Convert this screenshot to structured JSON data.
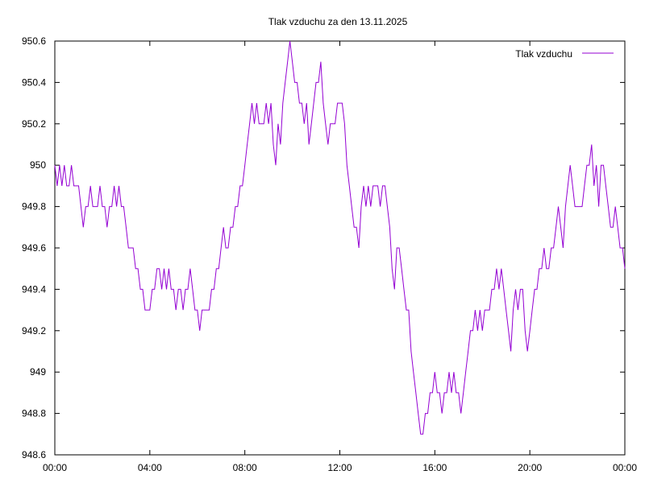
{
  "chart_data": {
    "type": "line",
    "title": "Tlak vzduchu za den 13.11.2025",
    "xlabel": "",
    "ylabel": "",
    "x_unit": "hours",
    "xlim": [
      0,
      24
    ],
    "ylim": [
      948.6,
      950.6
    ],
    "x_ticks": [
      {
        "value": 0,
        "label": "00:00"
      },
      {
        "value": 4,
        "label": "04:00"
      },
      {
        "value": 8,
        "label": "08:00"
      },
      {
        "value": 12,
        "label": "12:00"
      },
      {
        "value": 16,
        "label": "16:00"
      },
      {
        "value": 20,
        "label": "20:00"
      },
      {
        "value": 24,
        "label": "00:00"
      }
    ],
    "y_ticks": [
      {
        "value": 948.6,
        "label": "948.6"
      },
      {
        "value": 948.8,
        "label": "948.8"
      },
      {
        "value": 949.0,
        "label": "949"
      },
      {
        "value": 949.2,
        "label": "949.2"
      },
      {
        "value": 949.4,
        "label": "949.4"
      },
      {
        "value": 949.6,
        "label": "949.6"
      },
      {
        "value": 949.8,
        "label": "949.8"
      },
      {
        "value": 950.0,
        "label": "950"
      },
      {
        "value": 950.2,
        "label": "950.2"
      },
      {
        "value": 950.4,
        "label": "950.4"
      },
      {
        "value": 950.6,
        "label": "950.6"
      }
    ],
    "grid": false,
    "legend_position": "top-right",
    "series": [
      {
        "name": "Tlak vzduchu",
        "color": "#9400d3",
        "x": [
          0.0,
          0.1,
          0.2,
          0.3,
          0.4,
          0.5,
          0.6,
          0.7,
          0.8,
          0.9,
          1.0,
          1.1,
          1.2,
          1.3,
          1.4,
          1.5,
          1.6,
          1.7,
          1.8,
          1.9,
          2.0,
          2.1,
          2.2,
          2.3,
          2.4,
          2.5,
          2.6,
          2.7,
          2.8,
          2.9,
          3.0,
          3.1,
          3.2,
          3.3,
          3.4,
          3.5,
          3.6,
          3.7,
          3.8,
          3.9,
          4.0,
          4.1,
          4.2,
          4.3,
          4.4,
          4.5,
          4.6,
          4.7,
          4.8,
          4.9,
          5.0,
          5.1,
          5.2,
          5.3,
          5.4,
          5.5,
          5.6,
          5.7,
          5.8,
          5.9,
          6.0,
          6.1,
          6.2,
          6.3,
          6.4,
          6.5,
          6.6,
          6.7,
          6.8,
          6.9,
          7.0,
          7.1,
          7.2,
          7.3,
          7.4,
          7.5,
          7.6,
          7.7,
          7.8,
          7.9,
          8.0,
          8.1,
          8.2,
          8.3,
          8.4,
          8.5,
          8.6,
          8.7,
          8.8,
          8.9,
          9.0,
          9.1,
          9.2,
          9.3,
          9.4,
          9.5,
          9.6,
          9.7,
          9.8,
          9.9,
          10.0,
          10.1,
          10.2,
          10.3,
          10.4,
          10.5,
          10.6,
          10.7,
          10.8,
          10.9,
          11.0,
          11.1,
          11.2,
          11.3,
          11.4,
          11.5,
          11.6,
          11.7,
          11.8,
          11.9,
          12.0,
          12.1,
          12.2,
          12.3,
          12.4,
          12.5,
          12.6,
          12.7,
          12.8,
          12.9,
          13.0,
          13.1,
          13.2,
          13.3,
          13.4,
          13.5,
          13.6,
          13.7,
          13.8,
          13.9,
          14.0,
          14.1,
          14.2,
          14.3,
          14.4,
          14.5,
          14.6,
          14.7,
          14.8,
          14.9,
          15.0,
          15.1,
          15.2,
          15.3,
          15.4,
          15.5,
          15.6,
          15.7,
          15.8,
          15.9,
          16.0,
          16.1,
          16.2,
          16.3,
          16.4,
          16.5,
          16.6,
          16.7,
          16.8,
          16.9,
          17.0,
          17.1,
          17.2,
          17.3,
          17.4,
          17.5,
          17.6,
          17.7,
          17.8,
          17.9,
          18.0,
          18.1,
          18.2,
          18.3,
          18.4,
          18.5,
          18.6,
          18.7,
          18.8,
          18.9,
          19.0,
          19.1,
          19.2,
          19.3,
          19.4,
          19.5,
          19.6,
          19.7,
          19.8,
          19.9,
          20.0,
          20.1,
          20.2,
          20.3,
          20.4,
          20.5,
          20.6,
          20.7,
          20.8,
          20.9,
          21.0,
          21.1,
          21.2,
          21.3,
          21.4,
          21.5,
          21.6,
          21.7,
          21.8,
          21.9,
          22.0,
          22.1,
          22.2,
          22.3,
          22.4,
          22.5,
          22.6,
          22.7,
          22.8,
          22.9,
          23.0,
          23.1,
          23.2,
          23.3,
          23.4,
          23.5,
          23.6,
          23.7,
          23.8,
          23.9,
          24.0
        ],
        "y": [
          950.0,
          949.9,
          950.0,
          949.9,
          950.0,
          949.9,
          949.9,
          950.0,
          949.9,
          949.9,
          949.9,
          949.8,
          949.7,
          949.8,
          949.8,
          949.9,
          949.8,
          949.8,
          949.8,
          949.9,
          949.8,
          949.8,
          949.7,
          949.8,
          949.8,
          949.9,
          949.8,
          949.9,
          949.8,
          949.8,
          949.7,
          949.6,
          949.6,
          949.6,
          949.5,
          949.5,
          949.4,
          949.4,
          949.3,
          949.3,
          949.3,
          949.4,
          949.4,
          949.5,
          949.5,
          949.4,
          949.5,
          949.4,
          949.5,
          949.4,
          949.4,
          949.3,
          949.4,
          949.4,
          949.3,
          949.4,
          949.4,
          949.5,
          949.4,
          949.3,
          949.3,
          949.2,
          949.3,
          949.3,
          949.3,
          949.3,
          949.4,
          949.4,
          949.5,
          949.5,
          949.6,
          949.7,
          949.6,
          949.6,
          949.7,
          949.7,
          949.8,
          949.8,
          949.9,
          949.9,
          950.0,
          950.1,
          950.2,
          950.3,
          950.2,
          950.3,
          950.2,
          950.2,
          950.2,
          950.3,
          950.2,
          950.3,
          950.1,
          950.0,
          950.2,
          950.1,
          950.3,
          950.4,
          950.5,
          950.6,
          950.5,
          950.4,
          950.4,
          950.3,
          950.3,
          950.2,
          950.3,
          950.1,
          950.2,
          950.3,
          950.4,
          950.4,
          950.5,
          950.3,
          950.2,
          950.1,
          950.2,
          950.2,
          950.2,
          950.3,
          950.3,
          950.3,
          950.2,
          950.0,
          949.9,
          949.8,
          949.7,
          949.7,
          949.6,
          949.8,
          949.9,
          949.8,
          949.9,
          949.8,
          949.9,
          949.9,
          949.9,
          949.8,
          949.9,
          949.9,
          949.8,
          949.7,
          949.5,
          949.4,
          949.6,
          949.6,
          949.5,
          949.4,
          949.3,
          949.3,
          949.1,
          949.0,
          948.9,
          948.8,
          948.7,
          948.7,
          948.8,
          948.8,
          948.9,
          948.9,
          949.0,
          948.9,
          948.9,
          948.8,
          948.9,
          948.9,
          949.0,
          948.9,
          949.0,
          948.9,
          948.9,
          948.8,
          948.9,
          949.0,
          949.1,
          949.2,
          949.2,
          949.3,
          949.2,
          949.3,
          949.2,
          949.3,
          949.3,
          949.3,
          949.4,
          949.4,
          949.5,
          949.4,
          949.5,
          949.4,
          949.3,
          949.2,
          949.1,
          949.3,
          949.4,
          949.3,
          949.4,
          949.4,
          949.2,
          949.1,
          949.2,
          949.3,
          949.4,
          949.4,
          949.5,
          949.5,
          949.6,
          949.5,
          949.5,
          949.6,
          949.6,
          949.7,
          949.8,
          949.7,
          949.6,
          949.8,
          949.9,
          950.0,
          949.9,
          949.8,
          949.8,
          949.8,
          949.8,
          949.9,
          950.0,
          950.0,
          950.1,
          949.9,
          950.0,
          949.8,
          950.0,
          950.0,
          949.9,
          949.8,
          949.7,
          949.7,
          949.8,
          949.7,
          949.6,
          949.6,
          949.5
        ]
      }
    ]
  }
}
